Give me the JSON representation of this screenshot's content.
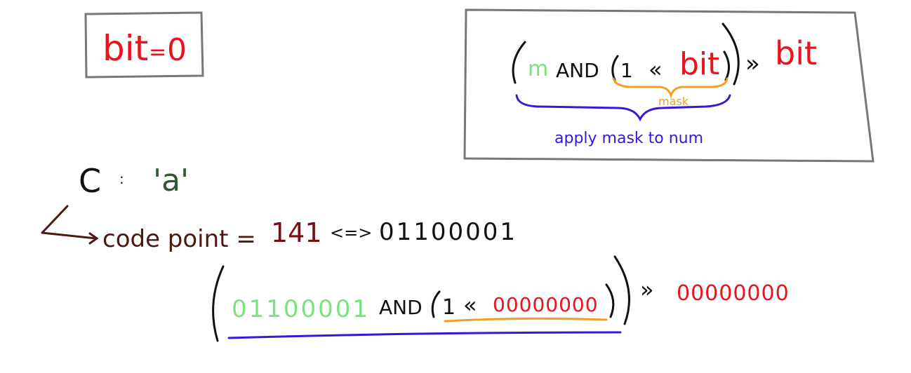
{
  "colors": {
    "red": "#e8141e",
    "green": "#7be37b",
    "black": "#111111",
    "orange": "#f0a020",
    "purple": "#3a16d8",
    "brown": "#4a1a12",
    "darkred": "#7a0e14",
    "darkgreen": "#2e5a2e",
    "box": "#777777"
  },
  "bit_box": {
    "label": "bit",
    "equals": "=",
    "value": "0"
  },
  "formula_box": {
    "m": "m",
    "and": "AND",
    "one": "1",
    "lshift": "«",
    "bit_inner": "bit",
    "rshift": "»",
    "bit_outer": "bit",
    "mask_label": "mask",
    "apply_label": "apply mask to num"
  },
  "char_line": {
    "var": "C",
    "colon": ":",
    "char": "'a'"
  },
  "code_line": {
    "label": "code point =",
    "decimal": "141",
    "equiv": "<=>",
    "binary": "01100001"
  },
  "example": {
    "num_binary": "01100001",
    "and": "AND",
    "one": "1",
    "lshift": "«",
    "bit_binary": "00000000",
    "rshift": "»",
    "result": "00000000"
  }
}
